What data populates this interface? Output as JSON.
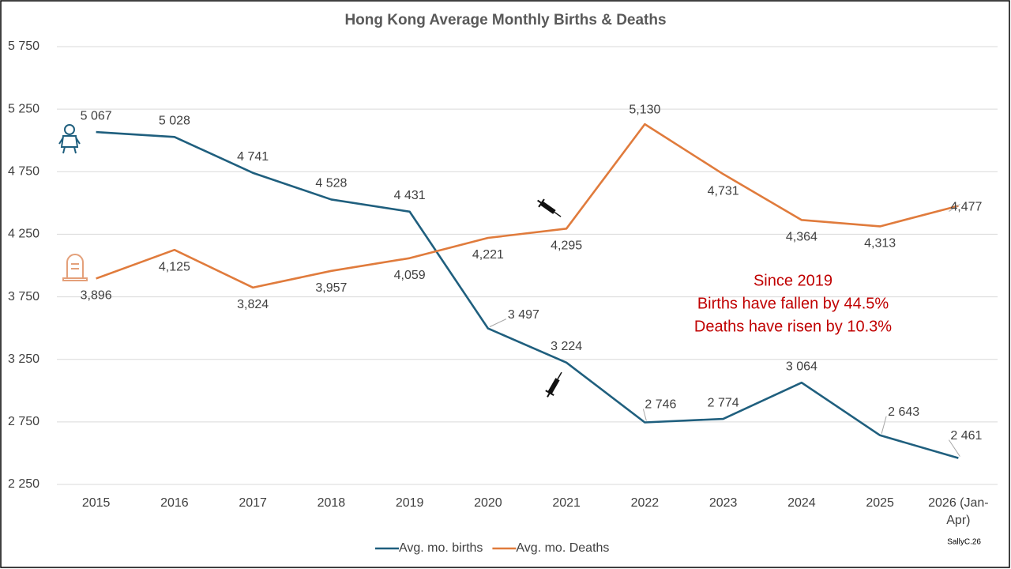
{
  "chart_data": {
    "type": "line",
    "title": "Hong Kong Average Monthly Births & Deaths",
    "categories": [
      "2015",
      "2016",
      "2017",
      "2018",
      "2019",
      "2020",
      "2021",
      "2022",
      "2023",
      "2024",
      "2025",
      "2026 (Jan-Apr)"
    ],
    "series": [
      {
        "name": "Avg. mo. births",
        "color": "#1f5f7e",
        "values": [
          5067,
          5028,
          4741,
          4528,
          4431,
          3497,
          3224,
          2746,
          2774,
          3064,
          2643,
          2461
        ],
        "value_labels": [
          "5 067",
          "5 028",
          "4 741",
          "4 528",
          "4 431",
          "3 497",
          "3 224",
          "2 746",
          "2 774",
          "3 064",
          "2 643",
          "2 461"
        ]
      },
      {
        "name": "Avg. mo. Deaths",
        "color": "#e07b3c",
        "values": [
          3896,
          4125,
          3824,
          3957,
          4059,
          4221,
          4295,
          5130,
          4731,
          4364,
          4313,
          4477
        ],
        "value_labels": [
          "3,896",
          "4,125",
          "3,824",
          "3,957",
          "4,059",
          "4,221",
          "4,295",
          "5,130",
          "4,731",
          "4,364",
          "4,313",
          "4,477"
        ]
      }
    ],
    "ylim": [
      2250,
      5750
    ],
    "yticks": [
      {
        "value": 2250,
        "label": "2 250"
      },
      {
        "value": 2750,
        "label": "2 750"
      },
      {
        "value": 3250,
        "label": "3 250"
      },
      {
        "value": 3750,
        "label": "3 750"
      },
      {
        "value": 4250,
        "label": "4 250"
      },
      {
        "value": 4750,
        "label": "4 750"
      },
      {
        "value": 5250,
        "label": "5 250"
      },
      {
        "value": 5750,
        "label": "5 750"
      }
    ],
    "grid": true,
    "legend": "bottom",
    "annotations": [
      "Since 2019",
      "Births have fallen by 44.5%",
      "Deaths have risen by 10.3%"
    ],
    "credit": "SallyC.26"
  }
}
